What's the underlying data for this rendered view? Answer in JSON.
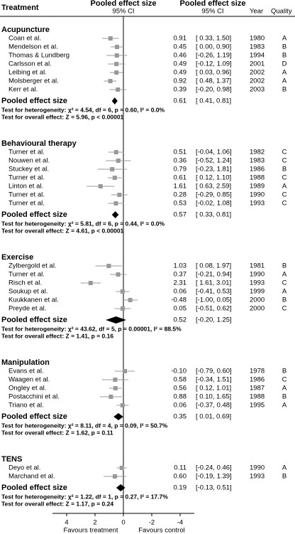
{
  "chart_data": {
    "type": "forest",
    "columns": [
      "Treatment",
      "Pooled effect size",
      "95% CI",
      "Pooled effect size",
      "95% CI",
      "Year",
      "Quality"
    ],
    "pooled_label": "Pooled effect size",
    "xlim": [
      5,
      -5
    ],
    "xticks": [
      4,
      2,
      0,
      -2,
      -4
    ],
    "xlabel_left": "Favours treatment",
    "xlabel_right": "Favours control",
    "marker_color": "#999999",
    "pooled_color": "#000000",
    "groups": [
      {
        "name": "Acupuncture",
        "studies": [
          {
            "name": "Coan et al.",
            "effect": 0.91,
            "ci_low": 0.33,
            "ci_high": 1.5,
            "ci_label": "[ 0.33, 1.50]",
            "year": 1980,
            "quality": "A"
          },
          {
            "name": "Mendelson et al.",
            "effect": 0.45,
            "ci_low": 0.0,
            "ci_high": 0.9,
            "ci_label": "[ 0.00, 0.90]",
            "year": 1983,
            "quality": "B"
          },
          {
            "name": "Thomas & Lundberg",
            "effect": 0.46,
            "ci_low": -0.26,
            "ci_high": 1.19,
            "ci_label": "[-0.26, 1.19]",
            "year": 1994,
            "quality": "B"
          },
          {
            "name": "Carlsson et al.",
            "effect": 0.49,
            "ci_low": -0.12,
            "ci_high": 1.09,
            "ci_label": "[-0.12, 1.09]",
            "year": 2001,
            "quality": "D"
          },
          {
            "name": "Leibing et al.",
            "effect": 0.49,
            "ci_low": 0.03,
            "ci_high": 0.96,
            "ci_label": "[ 0.03, 0.96]",
            "year": 2002,
            "quality": "A"
          },
          {
            "name": "Molsberger et al.",
            "effect": 0.92,
            "ci_low": 0.48,
            "ci_high": 1.37,
            "ci_label": "[ 0.48, 1.37]",
            "year": 2002,
            "quality": "A"
          },
          {
            "name": "Kerr et al.",
            "effect": 0.39,
            "ci_low": -0.2,
            "ci_high": 0.98,
            "ci_label": "[-0.20, 0.98]",
            "year": 2003,
            "quality": "B"
          }
        ],
        "pooled": {
          "effect": 0.61,
          "ci_low": 0.41,
          "ci_high": 0.81,
          "ci_label": "[ 0.41, 0.81]"
        },
        "heterogeneity": "Test for heterogeneity: χ² = 4.54, df = 6, p = 0.60, I² = 0.0%",
        "overall": "Test for overall effect: Z = 5.96, p < 0.00001"
      },
      {
        "name": "Behavioural therapy",
        "studies": [
          {
            "name": "Turner et al.",
            "effect": 0.51,
            "ci_low": -0.04,
            "ci_high": 1.06,
            "ci_label": "[-0.04, 1.06]",
            "year": 1982,
            "quality": "C"
          },
          {
            "name": "Nouwen et al.",
            "effect": 0.36,
            "ci_low": -0.52,
            "ci_high": 1.24,
            "ci_label": "[-0.52, 1.24]",
            "year": 1983,
            "quality": "C"
          },
          {
            "name": "Stuckey et al.",
            "effect": 0.79,
            "ci_low": -0.23,
            "ci_high": 1.81,
            "ci_label": "[-0.23, 1.81]",
            "year": 1986,
            "quality": "B"
          },
          {
            "name": "Turner et al.",
            "effect": 0.61,
            "ci_low": 0.12,
            "ci_high": 1.1,
            "ci_label": "[ 0.12, 1.10]",
            "year": 1988,
            "quality": "C"
          },
          {
            "name": "Linton et al.",
            "effect": 1.61,
            "ci_low": 0.63,
            "ci_high": 2.59,
            "ci_label": "[ 0.63, 2.59]",
            "year": 1989,
            "quality": "A"
          },
          {
            "name": "Turner et al.",
            "effect": 0.28,
            "ci_low": -0.29,
            "ci_high": 0.85,
            "ci_label": "[-0.29, 0.85]",
            "year": 1990,
            "quality": "C"
          },
          {
            "name": "Turner et al.",
            "effect": 0.53,
            "ci_low": -0.02,
            "ci_high": 1.08,
            "ci_label": "[-0.02, 1.08]",
            "year": 1993,
            "quality": "C"
          }
        ],
        "pooled": {
          "effect": 0.57,
          "ci_low": 0.33,
          "ci_high": 0.81,
          "ci_label": "[ 0.33, 0.81]"
        },
        "heterogeneity": "Test for heterogeneity: χ² = 5.81, df = 6, p = 0.44, I² = 0.0%",
        "overall": "Test for overall effect: Z = 4.61, p < 0.00001"
      },
      {
        "name": "Exercise",
        "studies": [
          {
            "name": "Zylbergold et al.",
            "effect": 1.03,
            "ci_low": 0.08,
            "ci_high": 1.97,
            "ci_label": "[ 0.08, 1.97]",
            "year": 1981,
            "quality": "B"
          },
          {
            "name": "Turner et al.",
            "effect": 0.37,
            "ci_low": -0.21,
            "ci_high": 0.94,
            "ci_label": "[-0.21, 0.94]",
            "year": 1990,
            "quality": "A"
          },
          {
            "name": "Risch et al.",
            "effect": 2.31,
            "ci_low": 1.61,
            "ci_high": 3.01,
            "ci_label": "[ 1.61, 3.01]",
            "year": 1993,
            "quality": "C"
          },
          {
            "name": "Soukup et al.",
            "effect": 0.06,
            "ci_low": -0.41,
            "ci_high": 0.53,
            "ci_label": "[-0.41, 0.53]",
            "year": 1999,
            "quality": "A"
          },
          {
            "name": "Kuukkanen et al.",
            "effect": -0.48,
            "ci_low": -1.0,
            "ci_high": 0.05,
            "ci_label": "[-1.00, 0.05]",
            "year": 2000,
            "quality": "B"
          },
          {
            "name": "Preyde et al.",
            "effect": 0.05,
            "ci_low": -0.51,
            "ci_high": 0.62,
            "ci_label": "[-0.51, 0.62]",
            "year": 2000,
            "quality": "C"
          }
        ],
        "pooled": {
          "effect": 0.52,
          "ci_low": -0.2,
          "ci_high": 1.25,
          "ci_label": "[-0.20, 1.25]"
        },
        "heterogeneity": "Test for heterogeneity: χ² = 43.62, df = 5, p = 0.00001, I² = 88.5%",
        "overall": "Test for overall effect: Z = 1.41, p = 0.16"
      },
      {
        "name": "Manipulation",
        "studies": [
          {
            "name": "Evans et al.",
            "effect": -0.1,
            "effect_label": "-0.10",
            "ci_low": -0.79,
            "ci_high": 0.6,
            "ci_label": "[-0.79, 0.60]",
            "year": 1978,
            "quality": "B"
          },
          {
            "name": "Waagen et al.",
            "effect": 0.58,
            "ci_low": -0.34,
            "ci_high": 1.51,
            "ci_label": "[-0.34, 1.51]",
            "year": 1986,
            "quality": "C"
          },
          {
            "name": "Ongley et al.",
            "effect": 0.56,
            "ci_low": 0.12,
            "ci_high": 1.01,
            "ci_label": "[ 0.12, 1.01]",
            "year": 1987,
            "quality": "A"
          },
          {
            "name": "Postacchini et al.",
            "effect": 0.88,
            "ci_low": 0.1,
            "ci_high": 1.65,
            "ci_label": "[ 0.10, 1.65]",
            "year": 1988,
            "quality": "B"
          },
          {
            "name": "Triano et al.",
            "effect": 0.06,
            "ci_low": -0.37,
            "ci_high": 0.48,
            "ci_label": "[-0.37, 0.48]",
            "year": 1995,
            "quality": "A"
          }
        ],
        "pooled": {
          "effect": 0.35,
          "ci_low": 0.01,
          "ci_high": 0.69,
          "ci_label": "[ 0.01, 0.69]"
        },
        "heterogeneity": "Test for heterogeneity: χ² = 8.11, df = 4, p = 0.09, I² = 50.7%",
        "overall": "Test for overall effect: Z = 1.62, p = 0.11"
      },
      {
        "name": "TENS",
        "studies": [
          {
            "name": "Deyo et al.",
            "effect": 0.11,
            "ci_low": -0.24,
            "ci_high": 0.46,
            "ci_label": "[-0.24, 0.46]",
            "year": 1990,
            "quality": "A"
          },
          {
            "name": "Marchand et al.",
            "effect": 0.6,
            "effect_label": "0.60",
            "ci_low": -0.19,
            "ci_high": 1.39,
            "ci_label": "[-0.19, 1.39]",
            "year": 1993,
            "quality": "B"
          }
        ],
        "pooled": {
          "effect": 0.19,
          "ci_low": -0.13,
          "ci_high": 0.51,
          "ci_label": "[-0.13, 0.51]"
        },
        "heterogeneity": "Test for heterogeneity: χ² = 1.22, df = 1, p = 0.27, I² = 17.7%",
        "overall": "Test for overall effect: Z = 1.17, p = 0.24"
      }
    ]
  }
}
